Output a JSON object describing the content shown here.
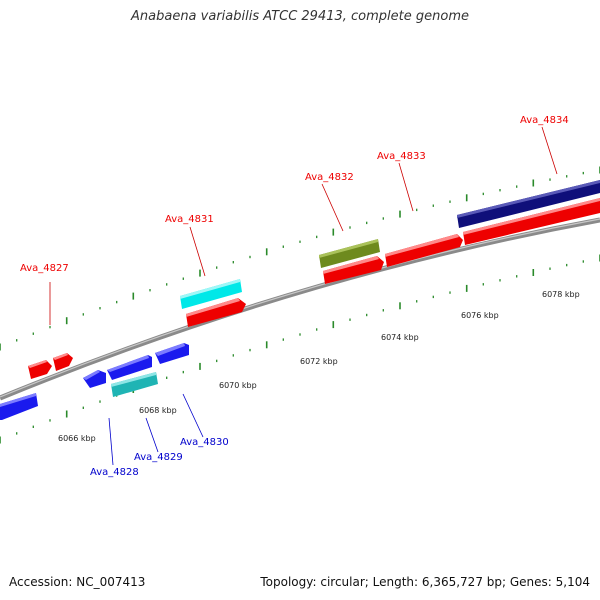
{
  "title": "Anabaena variabilis ATCC 29413, complete genome",
  "footer": {
    "accession_label": "Accession:",
    "accession": "NC_007413",
    "summary": "Topology: circular; Length: 6,365,727 bp; Genes: 5,104"
  },
  "colors": {
    "forward_label": "#ee0000",
    "reverse_label": "#0000cc",
    "tick": "#2a8a2a",
    "backbone": "#8a8a8a"
  },
  "scale_labels": [
    "6066 kbp",
    "6068 kbp",
    "6070 kbp",
    "6072 kbp",
    "6074 kbp",
    "6076 kbp",
    "6078 kbp"
  ],
  "genes": [
    {
      "label": "Ava_4827",
      "strand": "forward",
      "color": "red",
      "shape": "arrow"
    },
    {
      "label": "Ava_4828",
      "strand": "reverse",
      "color": "blue",
      "shape": "arrow"
    },
    {
      "label": "Ava_4829",
      "strand": "reverse",
      "color": "teal",
      "shape": "box"
    },
    {
      "label": "Ava_4830",
      "strand": "reverse",
      "color": "blue",
      "shape": "arrow"
    },
    {
      "label": "Ava_4831",
      "strand": "forward",
      "color": "cyan",
      "shape": "box"
    },
    {
      "label": "Ava_4832",
      "strand": "forward",
      "color": "olive",
      "shape": "box"
    },
    {
      "label": "Ava_4833",
      "strand": "forward",
      "color": "red",
      "shape": "arrow"
    },
    {
      "label": "Ava_4834",
      "strand": "forward",
      "color": "navy",
      "shape": "box"
    }
  ]
}
